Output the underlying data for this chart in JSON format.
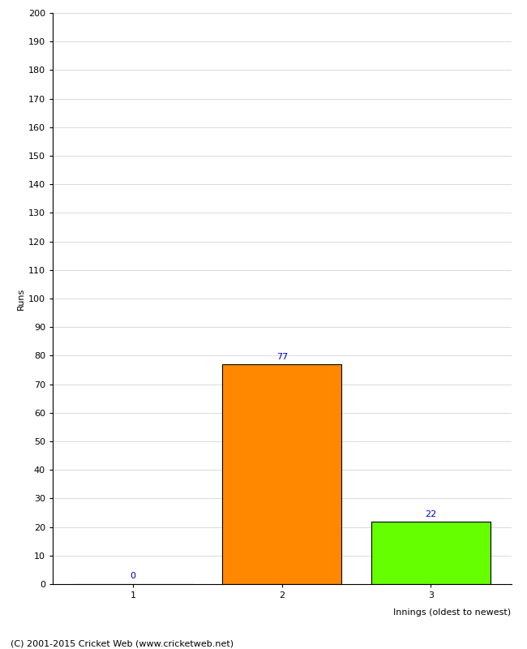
{
  "categories": [
    "1",
    "2",
    "3"
  ],
  "values": [
    0,
    77,
    22
  ],
  "bar_colors": [
    "#ff8800",
    "#ff8800",
    "#66ff00"
  ],
  "ylabel": "Runs",
  "xlabel": "Innings (oldest to newest)",
  "ylim": [
    0,
    200
  ],
  "yticks": [
    0,
    10,
    20,
    30,
    40,
    50,
    60,
    70,
    80,
    90,
    100,
    110,
    120,
    130,
    140,
    150,
    160,
    170,
    180,
    190,
    200
  ],
  "value_label_color": "#0000cc",
  "background_color": "#ffffff",
  "footer": "(C) 2001-2015 Cricket Web (www.cricketweb.net)"
}
